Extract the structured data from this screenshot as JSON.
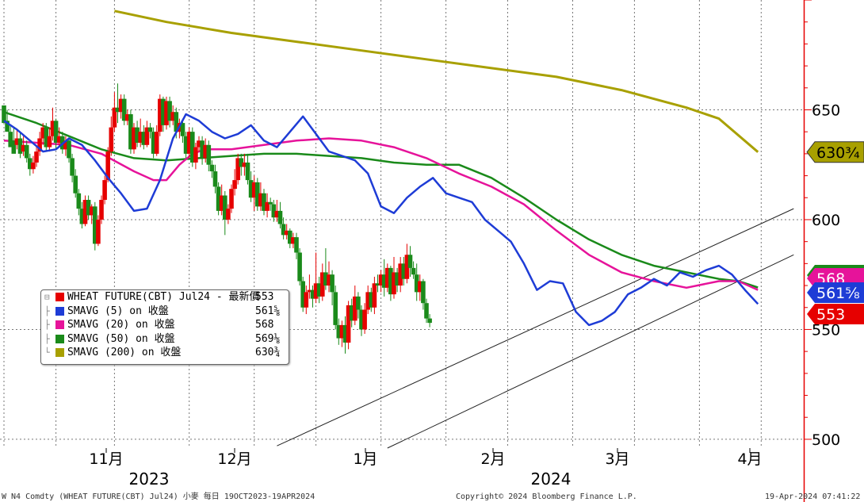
{
  "chart_data": {
    "type": "candlestick",
    "y_ticks": [
      {
        "value": 650,
        "label": "650"
      },
      {
        "value": 600,
        "label": "600"
      },
      {
        "value": 550,
        "label": "550"
      },
      {
        "value": 500,
        "label": "500"
      }
    ],
    "ylim": [
      496,
      700
    ],
    "months": [
      {
        "label": "11月"
      },
      {
        "label": "12月"
      },
      {
        "label": "1月"
      },
      {
        "label": "2月"
      },
      {
        "label": "3月"
      },
      {
        "label": "4月"
      }
    ],
    "years": [
      "2023",
      "2024"
    ],
    "candles": [
      [
        652,
        644,
        652,
        648
      ],
      [
        645,
        640,
        650,
        643
      ],
      [
        640,
        633,
        643,
        636
      ],
      [
        636,
        630,
        642,
        634
      ],
      [
        634,
        637,
        641,
        632
      ],
      [
        637,
        630,
        640,
        628
      ],
      [
        631,
        634,
        638,
        629
      ],
      [
        634,
        628,
        636,
        626
      ],
      [
        628,
        623,
        630,
        620
      ],
      [
        623,
        626,
        629,
        621
      ],
      [
        626,
        631,
        634,
        624
      ],
      [
        631,
        637,
        640,
        629
      ],
      [
        637,
        642,
        644,
        634
      ],
      [
        642,
        633,
        644,
        631
      ],
      [
        633,
        638,
        642,
        631
      ],
      [
        638,
        645,
        651,
        636
      ],
      [
        645,
        635,
        646,
        632
      ],
      [
        635,
        638,
        642,
        633
      ],
      [
        638,
        632,
        640,
        630
      ],
      [
        632,
        636,
        638,
        629
      ],
      [
        636,
        628,
        637,
        626
      ],
      [
        628,
        620,
        630,
        617
      ],
      [
        620,
        612,
        623,
        610
      ],
      [
        612,
        605,
        614,
        602
      ],
      [
        605,
        598,
        608,
        596
      ],
      [
        598,
        609,
        611,
        597
      ],
      [
        609,
        602,
        611,
        600
      ],
      [
        602,
        606,
        607,
        598
      ],
      [
        606,
        589,
        608,
        586
      ],
      [
        589,
        600,
        602,
        588
      ],
      [
        600,
        609,
        611,
        598
      ],
      [
        609,
        618,
        620,
        607
      ],
      [
        618,
        631,
        633,
        617
      ],
      [
        631,
        642,
        647,
        629
      ],
      [
        642,
        651,
        658,
        640
      ],
      [
        651,
        649,
        662,
        644
      ],
      [
        649,
        655,
        657,
        646
      ],
      [
        655,
        645,
        657,
        643
      ],
      [
        645,
        648,
        650,
        643
      ],
      [
        648,
        632,
        650,
        630
      ],
      [
        632,
        642,
        644,
        630
      ],
      [
        642,
        635,
        645,
        633
      ],
      [
        635,
        640,
        646,
        633
      ],
      [
        640,
        634,
        643,
        632
      ],
      [
        634,
        642,
        645,
        633
      ],
      [
        642,
        640,
        644,
        637
      ],
      [
        640,
        630,
        642,
        628
      ],
      [
        630,
        640,
        643,
        629
      ],
      [
        640,
        655,
        657,
        638
      ],
      [
        655,
        643,
        656,
        640
      ],
      [
        643,
        654,
        656,
        641
      ],
      [
        654,
        645,
        656,
        642
      ],
      [
        645,
        649,
        652,
        643
      ],
      [
        649,
        640,
        651,
        637
      ],
      [
        640,
        644,
        646,
        637
      ],
      [
        644,
        638,
        646,
        635
      ],
      [
        638,
        630,
        640,
        628
      ],
      [
        630,
        640,
        642,
        628
      ],
      [
        640,
        626,
        642,
        624
      ],
      [
        626,
        633,
        635,
        623
      ],
      [
        633,
        636,
        638,
        631
      ],
      [
        636,
        628,
        638,
        625
      ],
      [
        628,
        634,
        637,
        626
      ],
      [
        634,
        625,
        636,
        622
      ],
      [
        625,
        622,
        627,
        619
      ],
      [
        622,
        615,
        625,
        612
      ],
      [
        615,
        604,
        617,
        602
      ],
      [
        604,
        611,
        616,
        602
      ],
      [
        611,
        600,
        613,
        593
      ],
      [
        600,
        605,
        607,
        598
      ],
      [
        605,
        614,
        616,
        603
      ],
      [
        614,
        618,
        623,
        611
      ],
      [
        618,
        628,
        630,
        616
      ],
      [
        628,
        624,
        630,
        620
      ],
      [
        624,
        626,
        630,
        620
      ],
      [
        626,
        618,
        630,
        616
      ],
      [
        618,
        610,
        622,
        608
      ],
      [
        610,
        617,
        620,
        604
      ],
      [
        617,
        606,
        619,
        604
      ],
      [
        606,
        612,
        617,
        604
      ],
      [
        612,
        604,
        614,
        602
      ],
      [
        604,
        608,
        612,
        601
      ],
      [
        608,
        607,
        610,
        604
      ],
      [
        607,
        601,
        609,
        599
      ],
      [
        601,
        604,
        609,
        599
      ],
      [
        604,
        598,
        608,
        596
      ],
      [
        598,
        593,
        601,
        591
      ],
      [
        593,
        595,
        598,
        591
      ],
      [
        595,
        589,
        596,
        587
      ],
      [
        589,
        592,
        594,
        587
      ],
      [
        592,
        585,
        594,
        582
      ],
      [
        585,
        572,
        587,
        570
      ],
      [
        572,
        560,
        574,
        558
      ],
      [
        560,
        567,
        570,
        557
      ],
      [
        567,
        568,
        575,
        564
      ],
      [
        568,
        564,
        570,
        560
      ],
      [
        564,
        571,
        585,
        562
      ],
      [
        571,
        565,
        574,
        562
      ],
      [
        565,
        576,
        580,
        563
      ],
      [
        576,
        570,
        587,
        568
      ],
      [
        570,
        575,
        581,
        567
      ],
      [
        575,
        567,
        577,
        561
      ],
      [
        567,
        552,
        570,
        550
      ],
      [
        552,
        546,
        555,
        543
      ],
      [
        546,
        552,
        554,
        542
      ],
      [
        552,
        544,
        556,
        539
      ],
      [
        544,
        561,
        563,
        541
      ],
      [
        561,
        554,
        564,
        551
      ],
      [
        554,
        565,
        570,
        552
      ],
      [
        565,
        559,
        567,
        555
      ],
      [
        559,
        550,
        561,
        547
      ],
      [
        550,
        559,
        562,
        548
      ],
      [
        559,
        567,
        570,
        557
      ],
      [
        567,
        560,
        569,
        558
      ],
      [
        560,
        571,
        574,
        557
      ],
      [
        571,
        570,
        575,
        567
      ],
      [
        570,
        575,
        577,
        567
      ],
      [
        575,
        569,
        582,
        565
      ],
      [
        569,
        578,
        580,
        567
      ],
      [
        578,
        566,
        579,
        563
      ],
      [
        566,
        576,
        583,
        564
      ],
      [
        576,
        570,
        578,
        567
      ],
      [
        570,
        580,
        583,
        567
      ],
      [
        580,
        573,
        583,
        570
      ],
      [
        573,
        584,
        589,
        571
      ],
      [
        584,
        578,
        588,
        574
      ],
      [
        578,
        575,
        581,
        573
      ],
      [
        575,
        567,
        580,
        563
      ],
      [
        567,
        572,
        575,
        563
      ],
      [
        572,
        562,
        573,
        559
      ],
      [
        562,
        555,
        564,
        553
      ],
      [
        555,
        553,
        557,
        551
      ]
    ],
    "series": [
      {
        "name": "WHEAT FUTURE(CBT) Jul24 - 最新價",
        "last": "553",
        "color": "#e60000"
      },
      {
        "name": "SMAVG (5) on 收盤",
        "last": "561⅝",
        "color": "#1e3cd6",
        "points": [
          [
            0,
            645
          ],
          [
            4,
            641
          ],
          [
            8,
            636
          ],
          [
            12,
            631
          ],
          [
            16,
            632
          ],
          [
            20,
            637
          ],
          [
            24,
            634
          ],
          [
            28,
            627
          ],
          [
            32,
            619
          ],
          [
            36,
            612
          ],
          [
            40,
            604
          ],
          [
            44,
            605
          ],
          [
            48,
            618
          ],
          [
            52,
            637
          ],
          [
            56,
            648
          ],
          [
            60,
            645
          ],
          [
            64,
            640
          ],
          [
            68,
            637
          ],
          [
            72,
            639
          ],
          [
            76,
            643
          ],
          [
            80,
            636
          ],
          [
            84,
            633
          ],
          [
            88,
            640
          ],
          [
            92,
            647
          ],
          [
            96,
            639
          ],
          [
            100,
            631
          ],
          [
            104,
            629
          ],
          [
            108,
            627
          ],
          [
            112,
            621
          ],
          [
            116,
            606
          ],
          [
            120,
            603
          ],
          [
            124,
            610
          ],
          [
            128,
            615
          ],
          [
            132,
            619
          ],
          [
            136,
            612
          ],
          [
            140,
            610
          ],
          [
            144,
            608
          ],
          [
            148,
            600
          ],
          [
            152,
            595
          ],
          [
            156,
            590
          ],
          [
            160,
            580
          ],
          [
            164,
            568
          ],
          [
            168,
            572
          ],
          [
            172,
            571
          ],
          [
            176,
            558
          ],
          [
            180,
            552
          ],
          [
            184,
            554
          ],
          [
            188,
            558
          ],
          [
            192,
            566
          ],
          [
            196,
            569
          ],
          [
            200,
            573
          ],
          [
            204,
            570
          ],
          [
            208,
            576
          ],
          [
            212,
            574
          ],
          [
            216,
            577
          ],
          [
            220,
            579
          ],
          [
            224,
            575
          ],
          [
            228,
            568
          ],
          [
            232,
            561.6
          ]
        ]
      },
      {
        "name": "SMAVG (20) on 收盤",
        "last": "568",
        "color": "#e6139a",
        "points": [
          [
            0,
            636
          ],
          [
            10,
            635
          ],
          [
            20,
            634
          ],
          [
            30,
            630
          ],
          [
            40,
            622
          ],
          [
            46,
            618
          ],
          [
            50,
            618
          ],
          [
            54,
            625
          ],
          [
            58,
            630
          ],
          [
            62,
            632
          ],
          [
            70,
            632
          ],
          [
            80,
            634
          ],
          [
            90,
            636
          ],
          [
            100,
            637
          ],
          [
            110,
            636
          ],
          [
            120,
            633
          ],
          [
            130,
            628
          ],
          [
            140,
            621
          ],
          [
            150,
            615
          ],
          [
            160,
            607
          ],
          [
            170,
            595
          ],
          [
            180,
            584
          ],
          [
            190,
            576
          ],
          [
            200,
            572
          ],
          [
            210,
            569
          ],
          [
            220,
            572
          ],
          [
            226,
            572
          ],
          [
            232,
            568
          ]
        ]
      },
      {
        "name": "SMAVG (50) on 收盤",
        "last": "569⅛",
        "color": "#1a8a1a",
        "points": [
          [
            0,
            649
          ],
          [
            10,
            644
          ],
          [
            20,
            638
          ],
          [
            30,
            632
          ],
          [
            40,
            628
          ],
          [
            50,
            627
          ],
          [
            60,
            628
          ],
          [
            70,
            629
          ],
          [
            80,
            630
          ],
          [
            90,
            630
          ],
          [
            100,
            629
          ],
          [
            110,
            628
          ],
          [
            120,
            626
          ],
          [
            130,
            625
          ],
          [
            140,
            625
          ],
          [
            150,
            619
          ],
          [
            160,
            610
          ],
          [
            170,
            600
          ],
          [
            180,
            591
          ],
          [
            190,
            584
          ],
          [
            200,
            579
          ],
          [
            210,
            576
          ],
          [
            220,
            573
          ],
          [
            226,
            572
          ],
          [
            232,
            569.1
          ]
        ]
      },
      {
        "name": "SMAVG (200) on 收盤",
        "last": "630¾",
        "color": "#a8a000",
        "points": [
          [
            34,
            695
          ],
          [
            50,
            690
          ],
          [
            70,
            685
          ],
          [
            90,
            681
          ],
          [
            110,
            677
          ],
          [
            130,
            673
          ],
          [
            150,
            669
          ],
          [
            170,
            665
          ],
          [
            190,
            659
          ],
          [
            210,
            651
          ],
          [
            220,
            646
          ],
          [
            232,
            630.8
          ]
        ]
      }
    ],
    "trendlines": [
      {
        "points": [
          [
            84,
            497
          ],
          [
            243,
            605
          ]
        ]
      },
      {
        "points": [
          [
            118,
            496
          ],
          [
            243,
            584
          ]
        ]
      }
    ],
    "price_tags": [
      {
        "text": "630¾",
        "value": 630.75,
        "bg": "#a8a000",
        "fg": "#000000"
      },
      {
        "text": "569⅛",
        "value": 569.1,
        "bg": "#1a8a1a",
        "fg": "#ffffff"
      },
      {
        "text": "568",
        "value": 568,
        "bg": "#e6139a",
        "fg": "#ffffff"
      },
      {
        "text": "561⅝",
        "value": 561.6,
        "bg": "#1e3cd6",
        "fg": "#ffffff"
      },
      {
        "text": "553",
        "value": 553,
        "bg": "#e60000",
        "fg": "#ffffff"
      }
    ],
    "colors": {
      "up": "#e60000",
      "down": "#1a8a1a",
      "axis": "#e60000",
      "grid": "#777777"
    }
  },
  "legend": [
    {
      "label": "WHEAT FUTURE(CBT) Jul24 - 最新價",
      "value": "553",
      "color": "#e60000"
    },
    {
      "label": "SMAVG (5)  on 收盤",
      "value": "561⅝",
      "color": "#1e3cd6"
    },
    {
      "label": "SMAVG (20)  on 收盤",
      "value": "568",
      "color": "#e6139a"
    },
    {
      "label": "SMAVG (50)  on 收盤",
      "value": "569⅛",
      "color": "#1a8a1a"
    },
    {
      "label": "SMAVG (200)  on 收盤",
      "value": "630¾",
      "color": "#a8a000"
    }
  ],
  "footer": {
    "left": "W N4 Comdty (WHEAT FUTURE(CBT) Jul24) 小麥  每日 19OCT2023-19APR2024",
    "center": "Copyright© 2024 Bloomberg Finance L.P.",
    "right": "19-Apr-2024 07:41:22"
  }
}
